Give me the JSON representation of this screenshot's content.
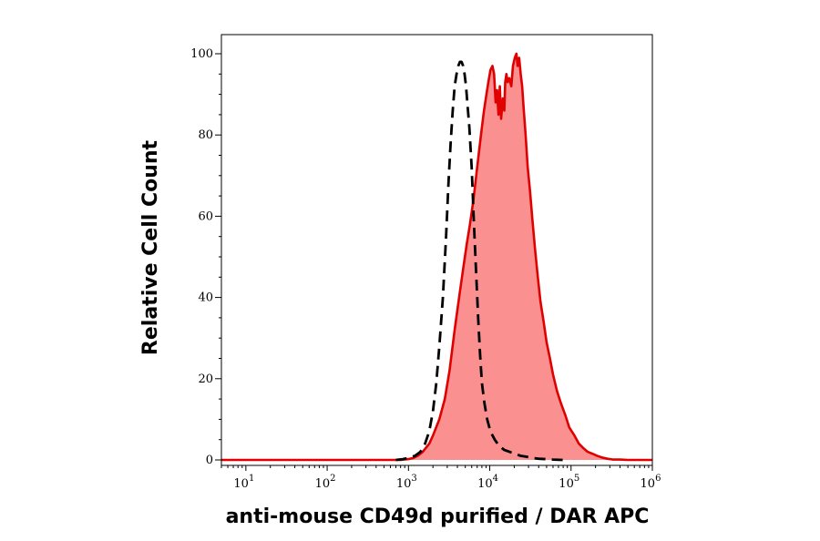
{
  "chart_data": {
    "type": "area",
    "xlabel": "anti-mouse CD49d purified / DAR APC",
    "ylabel": "Relative Cell Count",
    "xscale": "log",
    "xlim": [
      5,
      1000000
    ],
    "ylim": [
      0,
      100
    ],
    "grid": false,
    "x_ticks": [
      {
        "base": "10",
        "exp": "1",
        "value": 10
      },
      {
        "base": "10",
        "exp": "2",
        "value": 100
      },
      {
        "base": "10",
        "exp": "3",
        "value": 1000
      },
      {
        "base": "10",
        "exp": "4",
        "value": 10000
      },
      {
        "base": "10",
        "exp": "5",
        "value": 100000
      },
      {
        "base": "10",
        "exp": "6",
        "value": 1000000
      }
    ],
    "y_ticks": [
      "0",
      "20",
      "40",
      "60",
      "80",
      "100"
    ],
    "series": [
      {
        "style": "filled",
        "color": "#e00000",
        "fill": "#fa9090",
        "x": [
          5,
          100,
          700,
          800,
          1000,
          1150,
          1300,
          1500,
          1800,
          2000,
          2400,
          2800,
          3200,
          3700,
          4200,
          4700,
          5200,
          5700,
          6300,
          7000,
          7800,
          8500,
          9100,
          9600,
          10200,
          10800,
          11300,
          11800,
          12300,
          12800,
          13300,
          13800,
          14500,
          15100,
          15500,
          16000,
          16600,
          17400,
          18400,
          19300,
          20300,
          21300,
          22000,
          23000,
          24000,
          25000,
          26000,
          27600,
          29300,
          31300,
          33500,
          36000,
          39000,
          42000,
          46000,
          50000,
          55000,
          60000,
          67000,
          75000,
          85000,
          95000,
          110000,
          125000,
          140000,
          160000,
          185000,
          210000,
          240000,
          280000,
          330000,
          400000,
          500000,
          650000,
          850000,
          950000,
          1000000
        ],
        "values": [
          0,
          0,
          0,
          0,
          0.2,
          0.5,
          1,
          2,
          4,
          6,
          10,
          15,
          22,
          32,
          40,
          47,
          53,
          58,
          64,
          72,
          80,
          86,
          90,
          93,
          96,
          97,
          95,
          88,
          91,
          85,
          92,
          84,
          89,
          86,
          93,
          95,
          93,
          94,
          92,
          97,
          99,
          100,
          97,
          99,
          95,
          92,
          87,
          80,
          72,
          66,
          59,
          52,
          45,
          39,
          34,
          29,
          25,
          21,
          17,
          14,
          11,
          8,
          6,
          4,
          3,
          2,
          1.5,
          1,
          0.6,
          0.3,
          0.1,
          0.1,
          0,
          0,
          0,
          0,
          0
        ]
      },
      {
        "style": "dashed",
        "color": "#000000",
        "x": [
          5,
          100,
          700,
          850,
          1000,
          1200,
          1400,
          1600,
          1800,
          2000,
          2200,
          2400,
          2650,
          2900,
          3100,
          3300,
          3500,
          3700,
          3900,
          4100,
          4300,
          4500,
          4700,
          4900,
          5100,
          5300,
          5600,
          6000,
          6400,
          6800,
          7200,
          7600,
          8000,
          8600,
          9300,
          10200,
          11500,
          13000,
          15000,
          17500,
          20500,
          24000,
          28000,
          33000,
          40000,
          50000,
          60000,
          80000,
          1000000
        ],
        "values": [
          0,
          0,
          0,
          0.2,
          0.5,
          1,
          2,
          4,
          7,
          12,
          19,
          28,
          40,
          55,
          68,
          78,
          86,
          92,
          95,
          97,
          98,
          98,
          97,
          95,
          92,
          88,
          82,
          72,
          58,
          46,
          35,
          26,
          19,
          14,
          10,
          7,
          5,
          3.5,
          2.5,
          2,
          1.5,
          1,
          0.8,
          0.5,
          0.3,
          0.2,
          0.1,
          0,
          0
        ]
      }
    ]
  }
}
